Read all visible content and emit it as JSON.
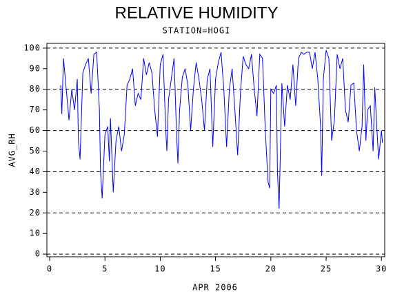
{
  "chart_data": {
    "type": "line",
    "title": "RELATIVE HUMIDITY",
    "subtitle": "STATION=HOGI",
    "xlabel": "APR 2006",
    "ylabel": "AVG_RH",
    "xlim": [
      -0.25,
      30.3
    ],
    "ylim": [
      -1.3,
      102.3
    ],
    "xticks": [
      0,
      5,
      10,
      15,
      20,
      25,
      30
    ],
    "yticks": [
      0,
      10,
      20,
      30,
      40,
      50,
      60,
      70,
      80,
      90,
      100
    ],
    "grid_lines": [
      0,
      20,
      40,
      60,
      80,
      100
    ],
    "series": [
      {
        "color": "#0000ff",
        "x": [
          1.0,
          1.1,
          1.25,
          1.5,
          1.75,
          2.0,
          2.25,
          2.5,
          2.6,
          2.75,
          3.0,
          3.25,
          3.5,
          3.75,
          4.0,
          4.25,
          4.5,
          4.6,
          4.75,
          5.0,
          5.25,
          5.4,
          5.5,
          5.75,
          6.0,
          6.25,
          6.5,
          6.75,
          7.0,
          7.25,
          7.5,
          7.75,
          8.0,
          8.25,
          8.5,
          8.75,
          9.0,
          9.25,
          9.5,
          9.75,
          10.0,
          10.25,
          10.5,
          10.6,
          10.75,
          11.0,
          11.25,
          11.5,
          11.6,
          11.75,
          12.0,
          12.25,
          12.5,
          12.75,
          13.0,
          13.25,
          13.5,
          13.75,
          14.0,
          14.25,
          14.5,
          14.75,
          15.0,
          15.25,
          15.5,
          15.75,
          16.0,
          16.25,
          16.5,
          16.75,
          17.0,
          17.25,
          17.5,
          17.75,
          18.0,
          18.25,
          18.5,
          18.75,
          19.0,
          19.25,
          19.5,
          19.75,
          19.9,
          20.0,
          20.25,
          20.5,
          20.6,
          20.75,
          21.0,
          21.25,
          21.5,
          21.75,
          22.0,
          22.25,
          22.5,
          22.75,
          23.0,
          23.25,
          23.5,
          23.75,
          24.0,
          24.25,
          24.5,
          24.6,
          24.75,
          25.0,
          25.25,
          25.5,
          25.75,
          26.0,
          26.25,
          26.5,
          26.75,
          27.0,
          27.25,
          27.5,
          27.75,
          28.0,
          28.25,
          28.4,
          28.6,
          28.75,
          29.0,
          29.25,
          29.4,
          29.6,
          29.75,
          30.0,
          30.1
        ],
        "values": [
          82,
          68,
          95,
          80,
          65,
          80,
          70,
          85,
          55,
          46,
          88,
          92,
          95,
          78,
          97,
          98,
          70,
          40,
          27,
          58,
          62,
          45,
          66,
          30,
          55,
          62,
          50,
          58,
          82,
          85,
          90,
          72,
          78,
          75,
          95,
          87,
          93,
          88,
          70,
          57,
          92,
          97,
          60,
          50,
          75,
          85,
          95,
          55,
          44,
          70,
          86,
          90,
          82,
          60,
          80,
          93,
          85,
          75,
          60,
          85,
          90,
          52,
          85,
          93,
          98,
          80,
          52,
          80,
          90,
          70,
          48,
          78,
          96,
          92,
          90,
          97,
          80,
          67,
          97,
          95,
          60,
          35,
          32,
          80,
          78,
          82,
          40,
          22,
          83,
          62,
          82,
          75,
          92,
          72,
          95,
          98,
          97,
          98,
          98,
          90,
          98,
          85,
          62,
          38,
          85,
          99,
          95,
          55,
          65,
          97,
          90,
          95,
          70,
          64,
          82,
          83,
          60,
          50,
          62,
          92,
          55,
          70,
          72,
          50,
          81,
          60,
          46,
          60,
          54
        ]
      }
    ]
  }
}
